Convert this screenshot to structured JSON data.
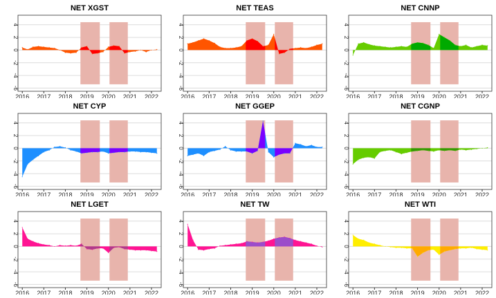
{
  "chart_data": {
    "type": "area",
    "x": [
      2016,
      2016.25,
      2016.5,
      2016.75,
      2017,
      2017.25,
      2017.5,
      2017.75,
      2018,
      2018.25,
      2018.5,
      2018.75,
      2019,
      2019.25,
      2019.5,
      2019.75,
      2020,
      2020.25,
      2020.5,
      2020.75,
      2021,
      2021.25,
      2021.5,
      2021.75,
      2022,
      2022.25
    ],
    "xticks": [
      "2016",
      "2017",
      "2018",
      "2019",
      "2020",
      "2021",
      "2022"
    ],
    "yticks": [
      "4",
      "2",
      "0",
      "-2",
      "-4",
      "-6"
    ],
    "ylim": [
      -6.5,
      5.5
    ],
    "xlim": [
      2015.8,
      2022.45
    ],
    "grid": true,
    "shaded_periods": [
      [
        2018.7,
        2019.6
      ],
      [
        2020.05,
        2020.9
      ]
    ],
    "shade_color": "#e8b4ac",
    "panels": [
      {
        "title": "NET XGST",
        "color": "#ff5500",
        "shade_series_color": "#ff0000",
        "values": [
          0.4,
          0.1,
          0.5,
          0.6,
          0.5,
          0.4,
          0.3,
          0.0,
          -0.4,
          -0.5,
          -0.4,
          0.4,
          0.6,
          -0.6,
          -0.5,
          -0.3,
          0.5,
          0.7,
          0.6,
          -0.5,
          -0.3,
          -0.2,
          0.0,
          -0.3,
          0.0,
          0.1
        ]
      },
      {
        "title": "NET TEAS",
        "color": "#ff5500",
        "shade_series_color": "#ff0000",
        "values": [
          1.0,
          1.2,
          1.5,
          1.8,
          1.5,
          1.1,
          0.5,
          0.3,
          0.3,
          0.4,
          0.6,
          1.5,
          1.8,
          1.4,
          0.6,
          0.8,
          2.5,
          -0.6,
          -0.4,
          0.2,
          0.3,
          0.4,
          0.3,
          0.5,
          0.8,
          1.0
        ]
      },
      {
        "title": "NET CNNP",
        "color": "#66cc00",
        "shade_series_color": "#00aa00",
        "values": [
          -0.8,
          1.0,
          1.2,
          0.9,
          0.7,
          0.6,
          0.5,
          0.4,
          0.5,
          0.6,
          0.5,
          1.0,
          1.2,
          1.1,
          0.8,
          0.3,
          2.5,
          2.0,
          1.5,
          0.8,
          0.6,
          0.8,
          0.4,
          0.6,
          0.8,
          0.7
        ]
      },
      {
        "title": "NET CYP",
        "color": "#1e8fff",
        "shade_series_color": "#7a00ff",
        "values": [
          -4.5,
          -2.5,
          -1.8,
          -1.2,
          -0.6,
          -0.3,
          0.2,
          0.3,
          0.1,
          -0.3,
          -0.5,
          -0.8,
          -0.7,
          -0.6,
          -0.6,
          -0.5,
          -0.8,
          -0.7,
          -0.6,
          -0.6,
          -0.5,
          -0.5,
          -0.6,
          -0.6,
          -0.7,
          -0.8
        ]
      },
      {
        "title": "NET GGEP",
        "color": "#1e8fff",
        "shade_series_color": "#7a00ff",
        "values": [
          -1.2,
          -1.0,
          -0.8,
          -1.2,
          -0.6,
          -0.4,
          -0.2,
          0.3,
          -0.3,
          -0.5,
          -0.5,
          -0.5,
          -0.8,
          -0.4,
          4.3,
          -0.6,
          -1.4,
          -1.0,
          -0.8,
          -0.8,
          0.8,
          0.6,
          0.3,
          0.5,
          0.2,
          0.2
        ]
      },
      {
        "title": "NET CGNP",
        "color": "#66cc00",
        "shade_series_color": "#339900",
        "values": [
          -2.5,
          -1.8,
          -1.5,
          -1.4,
          -1.6,
          -0.6,
          -0.4,
          -0.3,
          -0.6,
          -0.9,
          -0.7,
          -0.5,
          -0.4,
          -0.3,
          -0.4,
          -0.5,
          -0.3,
          -0.4,
          -0.3,
          -0.4,
          -0.2,
          -0.3,
          -0.2,
          -0.1,
          0.0,
          0.1
        ]
      },
      {
        "title": "NET LGET",
        "color": "#ff1493",
        "shade_series_color": "#b03a8a",
        "values": [
          3.0,
          1.2,
          0.8,
          0.5,
          0.3,
          0.2,
          0.0,
          0.2,
          0.1,
          0.2,
          0.1,
          0.4,
          -0.4,
          -0.5,
          -0.3,
          -0.3,
          -1.0,
          -0.2,
          -0.1,
          -0.4,
          -0.5,
          -0.6,
          -0.6,
          -0.6,
          -0.7,
          -0.8
        ]
      },
      {
        "title": "NET TW",
        "color": "#ff1493",
        "shade_series_color": "#9b4dca",
        "values": [
          3.5,
          1.0,
          -0.5,
          -0.6,
          -0.4,
          -0.3,
          0.1,
          0.2,
          0.3,
          0.4,
          0.5,
          0.8,
          0.7,
          0.6,
          0.7,
          0.9,
          1.2,
          1.4,
          1.5,
          1.3,
          1.0,
          0.8,
          0.6,
          0.4,
          0.1,
          -0.1
        ]
      },
      {
        "title": "NET WTI",
        "color": "#ffee00",
        "shade_series_color": "#ffaa00",
        "values": [
          1.8,
          1.2,
          1.0,
          0.6,
          0.4,
          0.2,
          0.0,
          -0.1,
          -0.2,
          -0.2,
          -0.3,
          -0.3,
          -1.6,
          -1.0,
          -0.6,
          -0.5,
          -1.3,
          -0.8,
          -0.6,
          -0.4,
          -0.3,
          -0.3,
          -0.2,
          -0.4,
          -0.5,
          -0.6
        ]
      }
    ]
  }
}
